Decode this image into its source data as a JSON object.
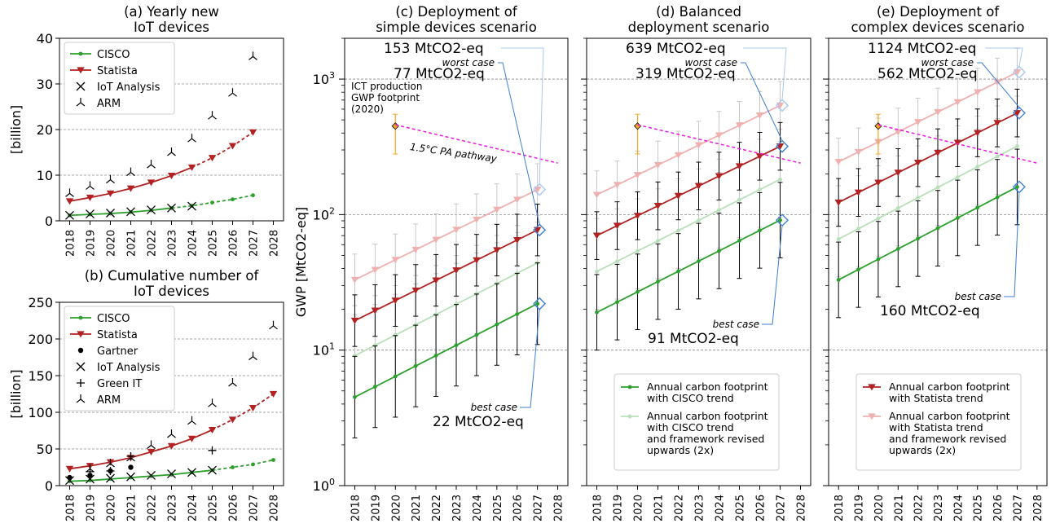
{
  "chart_data": [
    {
      "id": "a",
      "type": "line",
      "title": "(a) Yearly new\nIoT devices",
      "ylabel": "[billion]",
      "ylim": [
        0,
        40
      ],
      "yticks": [
        0,
        10,
        20,
        30,
        40
      ],
      "xticks": [
        2018,
        2019,
        2020,
        2021,
        2022,
        2023,
        2024,
        2025,
        2026,
        2027,
        2028
      ],
      "grid": "horizontal-dashed",
      "legend": "top-left",
      "legend_entries": [
        "CISCO",
        "Statista",
        "IoT Analysis",
        "ARM"
      ],
      "series": [
        {
          "name": "CISCO",
          "color": "#2ca02c",
          "marker": "dot",
          "solid_until": 2023,
          "x": [
            2018,
            2019,
            2020,
            2021,
            2022,
            2023,
            2024,
            2025,
            2026,
            2027
          ],
          "y": [
            1.2,
            1.4,
            1.6,
            1.9,
            2.3,
            2.8,
            3.3,
            4.0,
            4.7,
            5.6
          ]
        },
        {
          "name": "Statista",
          "color": "#b22222",
          "marker": "triangle-down",
          "solid_until": 2024,
          "x": [
            2018,
            2019,
            2020,
            2021,
            2022,
            2023,
            2024,
            2025,
            2026,
            2027
          ],
          "y": [
            4.3,
            5.1,
            6.0,
            7.1,
            8.4,
            9.9,
            11.7,
            13.8,
            16.4,
            19.4
          ]
        },
        {
          "name": "IoT Analysis",
          "color": "#000000",
          "marker": "x",
          "x": [
            2018,
            2019,
            2020,
            2021,
            2022,
            2023,
            2024
          ],
          "y": [
            1.2,
            1.5,
            1.7,
            2.0,
            2.4,
            2.8,
            3.2
          ]
        },
        {
          "name": "ARM",
          "color": "#000000",
          "marker": "tri",
          "x": [
            2018,
            2019,
            2020,
            2021,
            2022,
            2023,
            2024,
            2025,
            2026,
            2027
          ],
          "y": [
            6.0,
            7.6,
            9.0,
            10.6,
            12.3,
            15.0,
            18.0,
            23.0,
            28.0,
            36.0
          ]
        }
      ]
    },
    {
      "id": "b",
      "type": "line",
      "title": "(b) Cumulative number of\nIoT devices",
      "ylabel": "[billion]",
      "ylim": [
        0,
        250
      ],
      "yticks": [
        0,
        50,
        100,
        150,
        200,
        250
      ],
      "xticks": [
        2018,
        2019,
        2020,
        2021,
        2022,
        2023,
        2024,
        2025,
        2026,
        2027,
        2028
      ],
      "grid": "horizontal-dashed",
      "legend": "top-left",
      "legend_entries": [
        "CISCO",
        "Statista",
        "Gartner",
        "IoT Analysis",
        "Green IT",
        "ARM"
      ],
      "series": [
        {
          "name": "CISCO",
          "color": "#2ca02c",
          "marker": "dot",
          "solid_until": 2025,
          "x": [
            2018,
            2019,
            2020,
            2021,
            2022,
            2023,
            2024,
            2025,
            2026,
            2027,
            2028
          ],
          "y": [
            6,
            7,
            9,
            11,
            13,
            15,
            18,
            21,
            25,
            29,
            35
          ]
        },
        {
          "name": "Statista",
          "color": "#b22222",
          "marker": "triangle-down",
          "solid_until": 2025,
          "x": [
            2018,
            2019,
            2020,
            2021,
            2022,
            2023,
            2024,
            2025,
            2026,
            2027,
            2028
          ],
          "y": [
            23,
            27,
            32,
            38,
            46,
            54,
            64,
            76,
            90,
            106,
            125
          ]
        },
        {
          "name": "Gartner",
          "color": "#000000",
          "marker": "dot-big",
          "x": [
            2018,
            2019,
            2020,
            2021
          ],
          "y": [
            11,
            14,
            20,
            25
          ]
        },
        {
          "name": "IoT Analysis",
          "color": "#000000",
          "marker": "x",
          "x": [
            2018,
            2019,
            2020,
            2021,
            2022,
            2023,
            2024,
            2025
          ],
          "y": [
            7,
            9,
            10,
            12,
            14,
            16,
            18,
            21
          ]
        },
        {
          "name": "Green IT",
          "color": "#000000",
          "marker": "plus",
          "x": [
            2019,
            2020,
            2021,
            2025
          ],
          "y": [
            19,
            20,
            40,
            48
          ]
        },
        {
          "name": "ARM",
          "color": "#000000",
          "marker": "tri",
          "x": [
            2019,
            2020,
            2021,
            2022,
            2023,
            2024,
            2025,
            2026,
            2027,
            2028
          ],
          "y": [
            23,
            30,
            38,
            55,
            70,
            88,
            112,
            140,
            176,
            218
          ]
        }
      ]
    },
    {
      "id": "c",
      "type": "line",
      "scale": "log",
      "title": "(c) Deployment of\nsimple devices scenario",
      "ylabel": "GWP [MtCO2-eq]",
      "ylim": [
        1,
        2000
      ],
      "yticks": [
        1,
        10,
        100,
        1000
      ],
      "yticklabels": [
        "10^0",
        "10^1",
        "10^2",
        "10^3"
      ],
      "xticks": [
        2018,
        2019,
        2020,
        2021,
        2022,
        2023,
        2024,
        2025,
        2026,
        2027,
        2028
      ],
      "grid": "horizontal-dashed",
      "series": [
        {
          "name": "Annual carbon footprint with Statista trend and framework revised upwards (2x)",
          "color": "#efb0b0",
          "marker": "triangle-down",
          "start": 33,
          "end": 153,
          "err_factor": 1.55
        },
        {
          "name": "Annual carbon footprint with CISCO trend and framework revised upwards (2x)",
          "color": "#b8e0b8",
          "marker": "dot",
          "start": 9.1,
          "end": 44,
          "err_factor": 2.0
        },
        {
          "name": "Annual carbon footprint with Statista trend",
          "color": "#b22222",
          "marker": "triangle-down",
          "start": 16.5,
          "end": 77,
          "err_factor": 1.55
        },
        {
          "name": "Annual carbon footprint with CISCO trend",
          "color": "#2ca02c",
          "marker": "dot",
          "start": 4.5,
          "end": 22,
          "err_factor": 2.0
        }
      ],
      "ict_point": {
        "x": 2020,
        "y": 450,
        "low": 280,
        "high": 550,
        "label": "ICT production\nGWP footprint\n(2020)"
      },
      "pathway": {
        "x0": 2020,
        "y0": 460,
        "x1": 2028,
        "y1": 240,
        "label": "1.5°C PA pathway"
      },
      "annotations": {
        "upper_value": "153 MtCO2-eq",
        "upper_y": 153,
        "worst_label": "worst case",
        "worst_value": "77 MtCO2-eq",
        "worst_y": 77,
        "best_label": "best case",
        "best_value": "22 MtCO2-eq",
        "best_y": 22
      }
    },
    {
      "id": "d",
      "type": "line",
      "scale": "log",
      "title": "(d)  Balanced\ndeployment scenario",
      "ylim": [
        1,
        2000
      ],
      "yticks": [
        1,
        10,
        100,
        1000
      ],
      "xticks": [
        2018,
        2019,
        2020,
        2021,
        2022,
        2023,
        2024,
        2025,
        2026,
        2027,
        2028
      ],
      "grid": "horizontal-dashed",
      "legend": "lower-center",
      "legend_entries": [
        "Annual carbon footprint\nwith CISCO trend",
        "Annual carbon footprint\nwith CISCO trend\nand framework revised\nupwards (2x)"
      ],
      "series": [
        {
          "name": "Annual carbon footprint with Statista trend and framework revised upwards (2x)",
          "color": "#efb0b0",
          "marker": "triangle-down",
          "start": 140,
          "end": 639,
          "err_factor": 1.5
        },
        {
          "name": "Annual carbon footprint with CISCO trend and framework revised upwards (2x)",
          "color": "#b8e0b8",
          "marker": "dot",
          "start": 38,
          "end": 182,
          "err_factor": 1.9
        },
        {
          "name": "Annual carbon footprint with Statista trend",
          "color": "#b22222",
          "marker": "triangle-down",
          "start": 70,
          "end": 319,
          "err_factor": 1.5
        },
        {
          "name": "Annual carbon footprint with CISCO trend",
          "color": "#2ca02c",
          "marker": "dot",
          "start": 19,
          "end": 91,
          "err_factor": 1.9
        }
      ],
      "ict_point": {
        "x": 2020,
        "y": 450,
        "low": 280,
        "high": 550
      },
      "pathway": {
        "x0": 2020,
        "y0": 460,
        "x1": 2028,
        "y1": 240
      },
      "annotations": {
        "upper_value": "639 MtCO2-eq",
        "upper_y": 639,
        "worst_label": "worst case",
        "worst_value": "319 MtCO2-eq",
        "worst_y": 319,
        "best_label": "best case",
        "best_value": "91 MtCO2-eq",
        "best_y": 91
      }
    },
    {
      "id": "e",
      "type": "line",
      "scale": "log",
      "title": "(e)  Deployment of\ncomplex devices scenario",
      "ylim": [
        1,
        2000
      ],
      "yticks": [
        1,
        10,
        100,
        1000
      ],
      "xticks": [
        2018,
        2019,
        2020,
        2021,
        2022,
        2023,
        2024,
        2025,
        2026,
        2027,
        2028
      ],
      "grid": "horizontal-dashed",
      "legend": "lower-center",
      "legend_entries": [
        "Annual carbon footprint\nwith Statista trend",
        "Annual carbon footprint\nwith Statista trend\nand framework revised\nupwards (2x)"
      ],
      "series": [
        {
          "name": "Annual carbon footprint with Statista trend and framework revised upwards (2x)",
          "color": "#efb0b0",
          "marker": "triangle-down",
          "start": 245,
          "end": 1124,
          "err_factor": 1.5
        },
        {
          "name": "Annual carbon footprint with CISCO trend and framework revised upwards (2x)",
          "color": "#b8e0b8",
          "marker": "dot",
          "start": 66,
          "end": 320,
          "err_factor": 1.9
        },
        {
          "name": "Annual carbon footprint with Statista trend",
          "color": "#b22222",
          "marker": "triangle-down",
          "start": 123,
          "end": 562,
          "err_factor": 1.5
        },
        {
          "name": "Annual carbon footprint with CISCO trend",
          "color": "#2ca02c",
          "marker": "dot",
          "start": 33,
          "end": 160,
          "err_factor": 1.9
        }
      ],
      "ict_point": {
        "x": 2020,
        "y": 450,
        "low": 280,
        "high": 550
      },
      "pathway": {
        "x0": 2020,
        "y0": 460,
        "x1": 2028,
        "y1": 240
      },
      "annotations": {
        "upper_value": "1124 MtCO2-eq",
        "upper_y": 1124,
        "worst_label": "worst case",
        "worst_value": "562 MtCO2-eq",
        "worst_y": 562,
        "best_label": "best case",
        "best_value": "160 MtCO2-eq",
        "best_y": 160
      }
    }
  ],
  "colors": {
    "cisco": "#2ca02c",
    "statista": "#b22222",
    "cisco_light": "#b8e0b8",
    "statista_light": "#efb0b0",
    "annotation": "#3a7fd5",
    "annotation_light": "#a9c8ef",
    "ict": "#f5a623",
    "pathway": "#e91ae0",
    "grid": "#888888"
  }
}
